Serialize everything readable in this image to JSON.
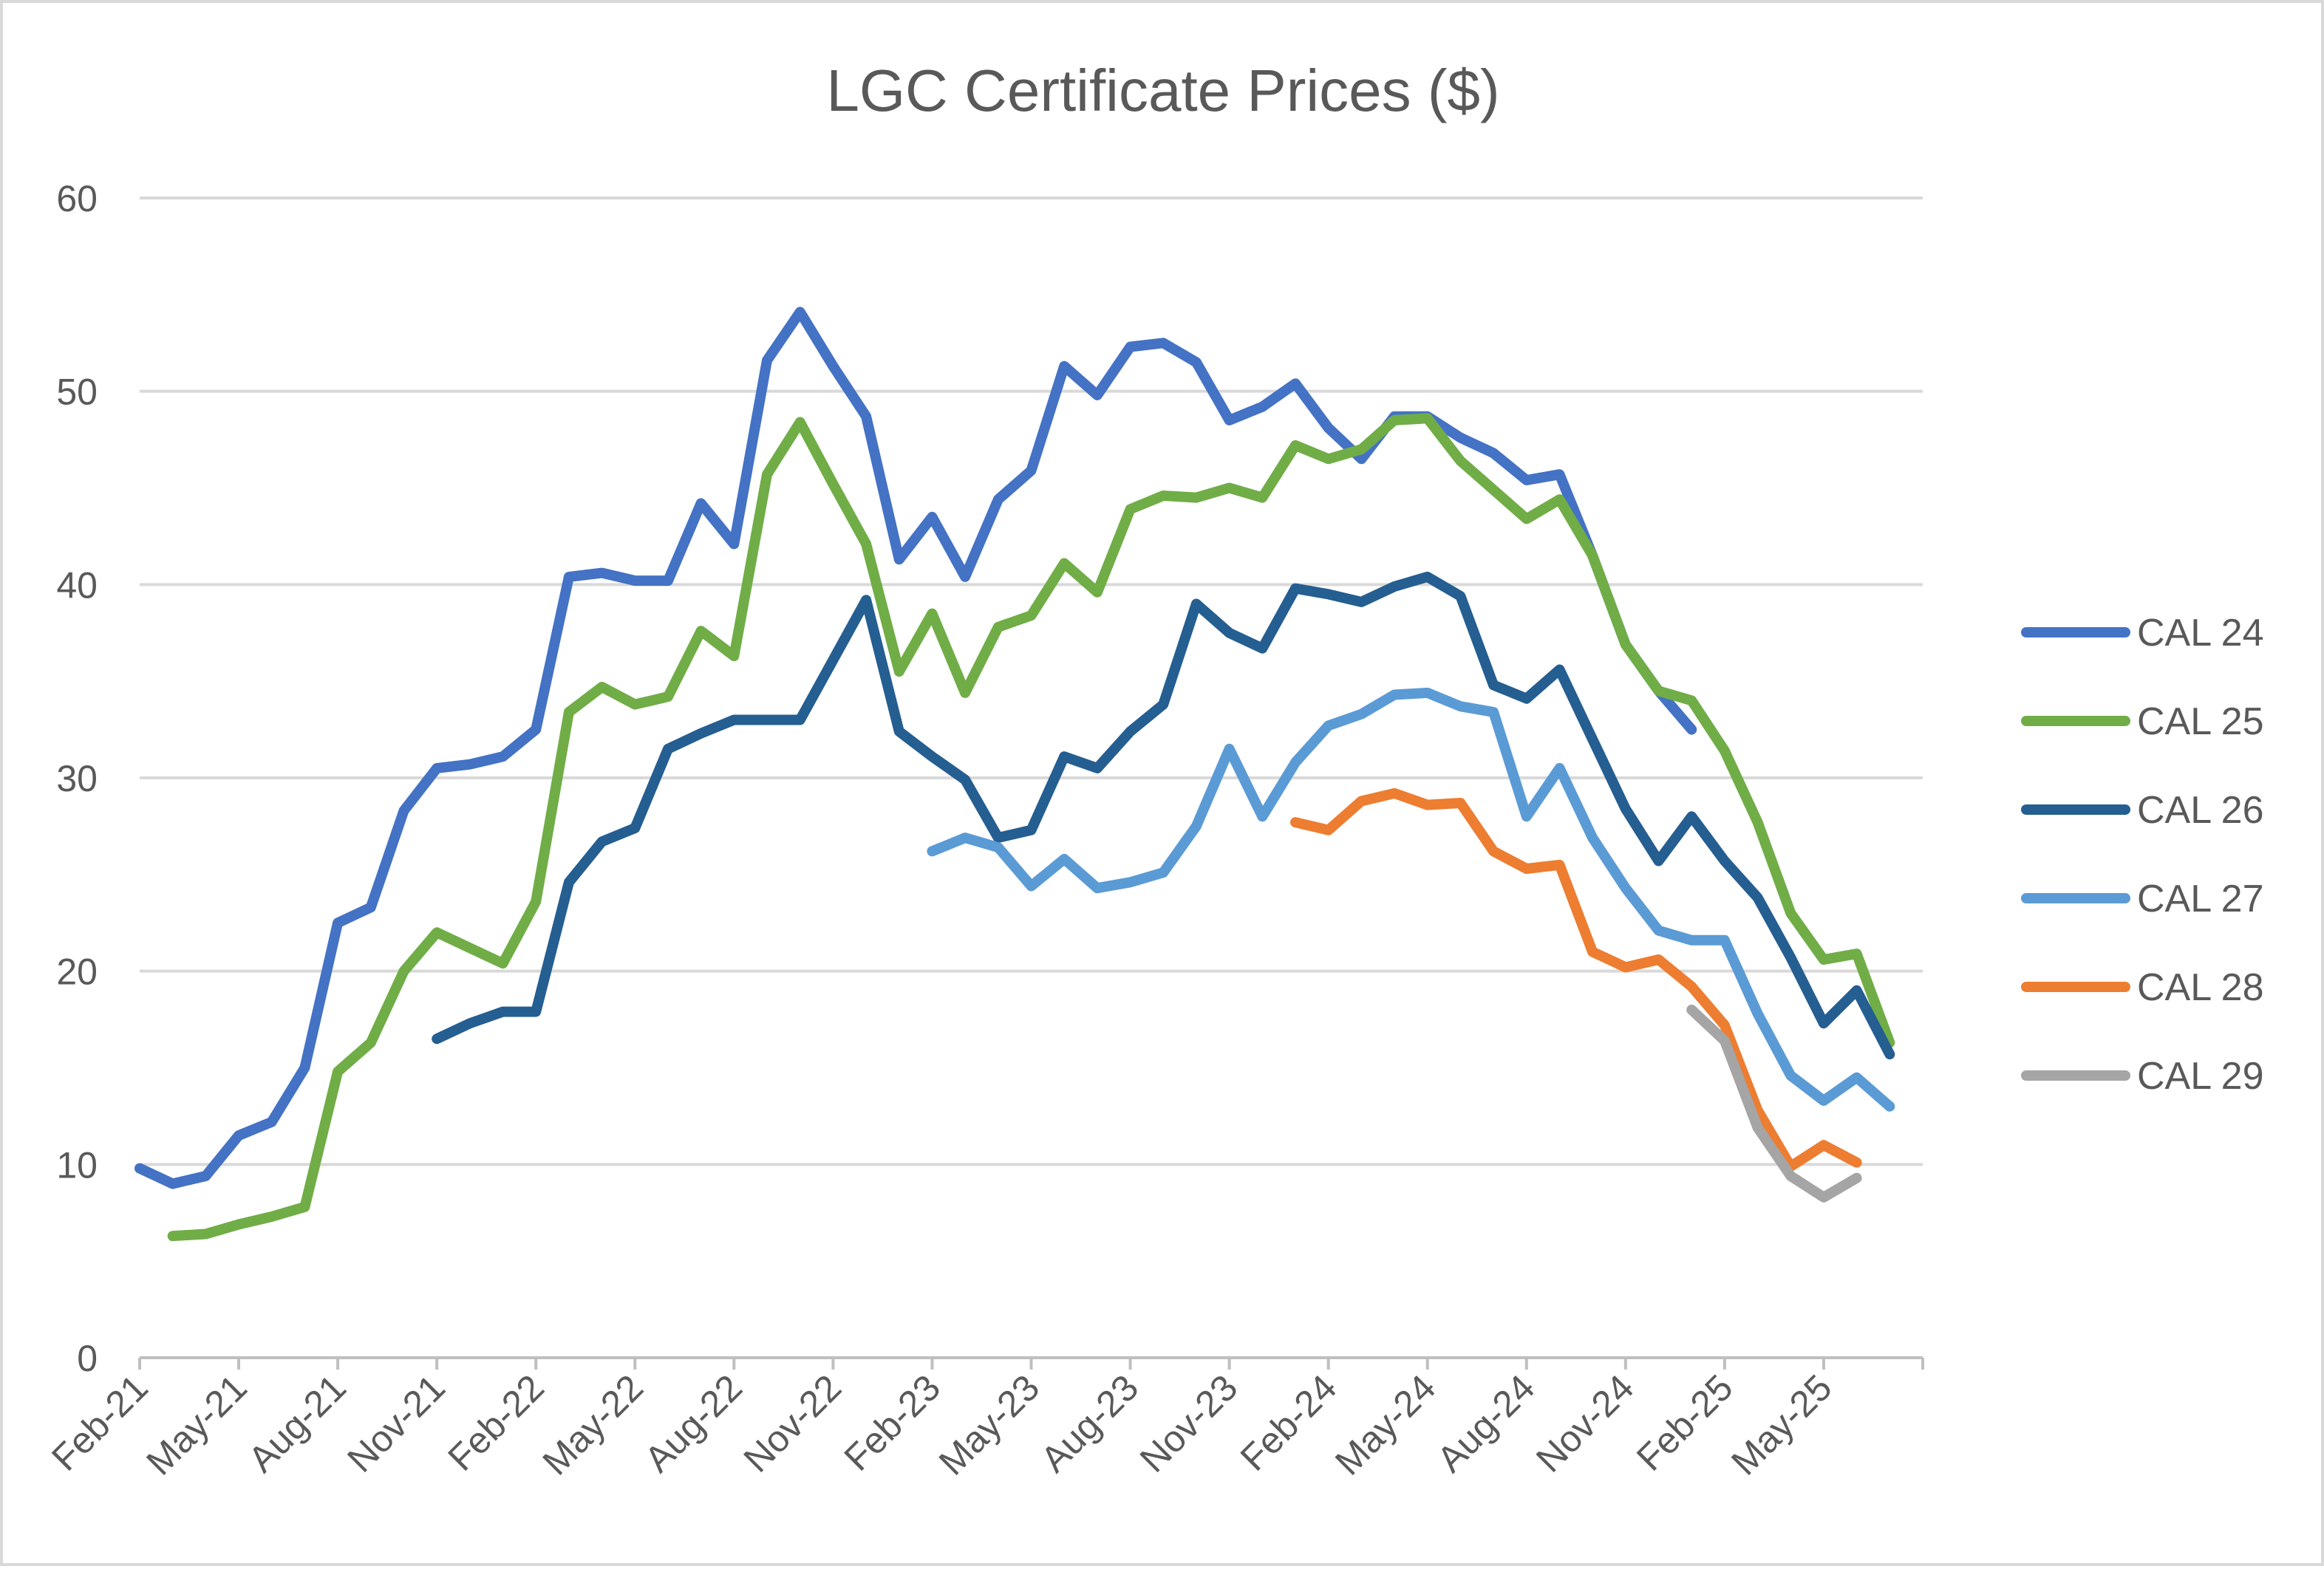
{
  "chart_data": {
    "type": "line",
    "title": "LGC Certificate Prices ($)",
    "xlabel": "",
    "ylabel": "",
    "ylim": [
      0,
      60
    ],
    "y_ticks": [
      "0",
      "10",
      "20",
      "30",
      "40",
      "50",
      "60"
    ],
    "grid": "horizontal",
    "legend_position": "right",
    "x_tick_labels": [
      "Feb-21",
      "May-21",
      "Aug-21",
      "Nov-21",
      "Feb-22",
      "May-22",
      "Aug-22",
      "Nov-22",
      "Feb-23",
      "May-23",
      "Aug-23",
      "Nov-23",
      "Feb-24",
      "May-24",
      "Aug-24",
      "Nov-24",
      "Feb-25",
      "May-25"
    ],
    "x": [
      "Feb-21",
      "Mar-21",
      "Apr-21",
      "May-21",
      "Jun-21",
      "Jul-21",
      "Aug-21",
      "Sep-21",
      "Oct-21",
      "Nov-21",
      "Dec-21",
      "Jan-22",
      "Feb-22",
      "Mar-22",
      "Apr-22",
      "May-22",
      "Jun-22",
      "Jul-22",
      "Aug-22",
      "Sep-22",
      "Oct-22",
      "Nov-22",
      "Dec-22",
      "Jan-23",
      "Feb-23",
      "Mar-23",
      "Apr-23",
      "May-23",
      "Jun-23",
      "Jul-23",
      "Aug-23",
      "Sep-23",
      "Oct-23",
      "Nov-23",
      "Dec-23",
      "Jan-24",
      "Feb-24",
      "Mar-24",
      "Apr-24",
      "May-24",
      "Jun-24",
      "Jul-24",
      "Aug-24",
      "Sep-24",
      "Oct-24",
      "Nov-24",
      "Dec-24",
      "Jan-25",
      "Feb-25",
      "Mar-25",
      "Apr-25",
      "May-25",
      "Jun-25",
      "Jul-25",
      "Aug-25"
    ],
    "series": [
      {
        "name": "CAL 24",
        "color": "#4472C4",
        "values": [
          9.8,
          9.0,
          9.4,
          11.5,
          12.2,
          15.0,
          22.5,
          23.3,
          28.3,
          30.5,
          30.7,
          31.1,
          32.5,
          40.4,
          40.6,
          40.2,
          40.2,
          44.2,
          42.1,
          51.6,
          54.1,
          51.3,
          48.7,
          41.3,
          43.5,
          40.4,
          44.4,
          45.9,
          51.3,
          49.8,
          52.3,
          52.5,
          51.5,
          48.5,
          49.2,
          50.4,
          48.1,
          46.5,
          48.7,
          48.7,
          47.6,
          46.8,
          45.4,
          45.7,
          41.5,
          36.9,
          34.5,
          32.5,
          null,
          null,
          null,
          null,
          null,
          null,
          null
        ]
      },
      {
        "name": "CAL 25",
        "color": "#70AD47",
        "values": [
          null,
          6.3,
          6.4,
          6.9,
          7.3,
          7.8,
          14.8,
          16.3,
          20.0,
          22.0,
          21.2,
          20.4,
          23.6,
          33.4,
          34.7,
          33.8,
          34.2,
          37.6,
          36.3,
          45.7,
          48.4,
          45.2,
          42.1,
          35.5,
          38.5,
          34.4,
          37.8,
          38.4,
          41.1,
          39.6,
          43.9,
          44.6,
          44.5,
          45.0,
          44.5,
          47.2,
          46.5,
          47.0,
          48.5,
          48.6,
          46.4,
          44.9,
          43.4,
          44.4,
          41.5,
          36.9,
          34.5,
          34.0,
          31.4,
          27.7,
          23.0,
          20.6,
          20.9,
          16.3,
          null
        ]
      },
      {
        "name": "CAL 26",
        "color": "#255E91",
        "values": [
          null,
          null,
          null,
          null,
          null,
          null,
          null,
          null,
          null,
          16.5,
          17.3,
          17.9,
          17.9,
          24.6,
          26.7,
          27.4,
          31.5,
          32.3,
          33.0,
          33.0,
          33.0,
          36.1,
          39.2,
          32.4,
          31.1,
          29.9,
          26.9,
          27.3,
          31.1,
          30.5,
          32.4,
          33.8,
          39.0,
          37.5,
          36.7,
          39.8,
          39.5,
          39.1,
          39.9,
          40.4,
          39.4,
          34.8,
          34.1,
          35.6,
          32.0,
          28.4,
          25.7,
          28.0,
          25.7,
          23.8,
          20.7,
          17.3,
          19.0,
          15.7,
          null
        ]
      },
      {
        "name": "CAL 27",
        "color": "#5B9BD5",
        "values": [
          null,
          null,
          null,
          null,
          null,
          null,
          null,
          null,
          null,
          null,
          null,
          null,
          null,
          null,
          null,
          null,
          null,
          null,
          null,
          null,
          null,
          null,
          null,
          null,
          26.2,
          26.9,
          26.4,
          24.4,
          25.8,
          24.3,
          24.6,
          25.1,
          27.5,
          31.5,
          28.0,
          30.8,
          32.7,
          33.3,
          34.3,
          34.4,
          33.7,
          33.4,
          28.0,
          30.5,
          26.9,
          24.3,
          22.1,
          21.6,
          21.6,
          17.8,
          14.6,
          13.3,
          14.5,
          13.0,
          null
        ]
      },
      {
        "name": "CAL 28",
        "color": "#ED7D31",
        "values": [
          null,
          null,
          null,
          null,
          null,
          null,
          null,
          null,
          null,
          null,
          null,
          null,
          null,
          null,
          null,
          null,
          null,
          null,
          null,
          null,
          null,
          null,
          null,
          null,
          null,
          null,
          null,
          null,
          null,
          null,
          null,
          null,
          null,
          null,
          null,
          27.7,
          27.3,
          28.8,
          29.2,
          28.6,
          28.7,
          26.2,
          25.3,
          25.5,
          21.0,
          20.2,
          20.6,
          19.2,
          17.2,
          12.8,
          9.9,
          11.0,
          10.1,
          null,
          null
        ]
      },
      {
        "name": "CAL 29",
        "color": "#A5A5A5",
        "values": [
          null,
          null,
          null,
          null,
          null,
          null,
          null,
          null,
          null,
          null,
          null,
          null,
          null,
          null,
          null,
          null,
          null,
          null,
          null,
          null,
          null,
          null,
          null,
          null,
          null,
          null,
          null,
          null,
          null,
          null,
          null,
          null,
          null,
          null,
          null,
          null,
          null,
          null,
          null,
          null,
          null,
          null,
          null,
          null,
          null,
          null,
          null,
          18.0,
          16.4,
          11.9,
          9.4,
          8.3,
          9.3,
          null,
          null
        ]
      }
    ]
  }
}
